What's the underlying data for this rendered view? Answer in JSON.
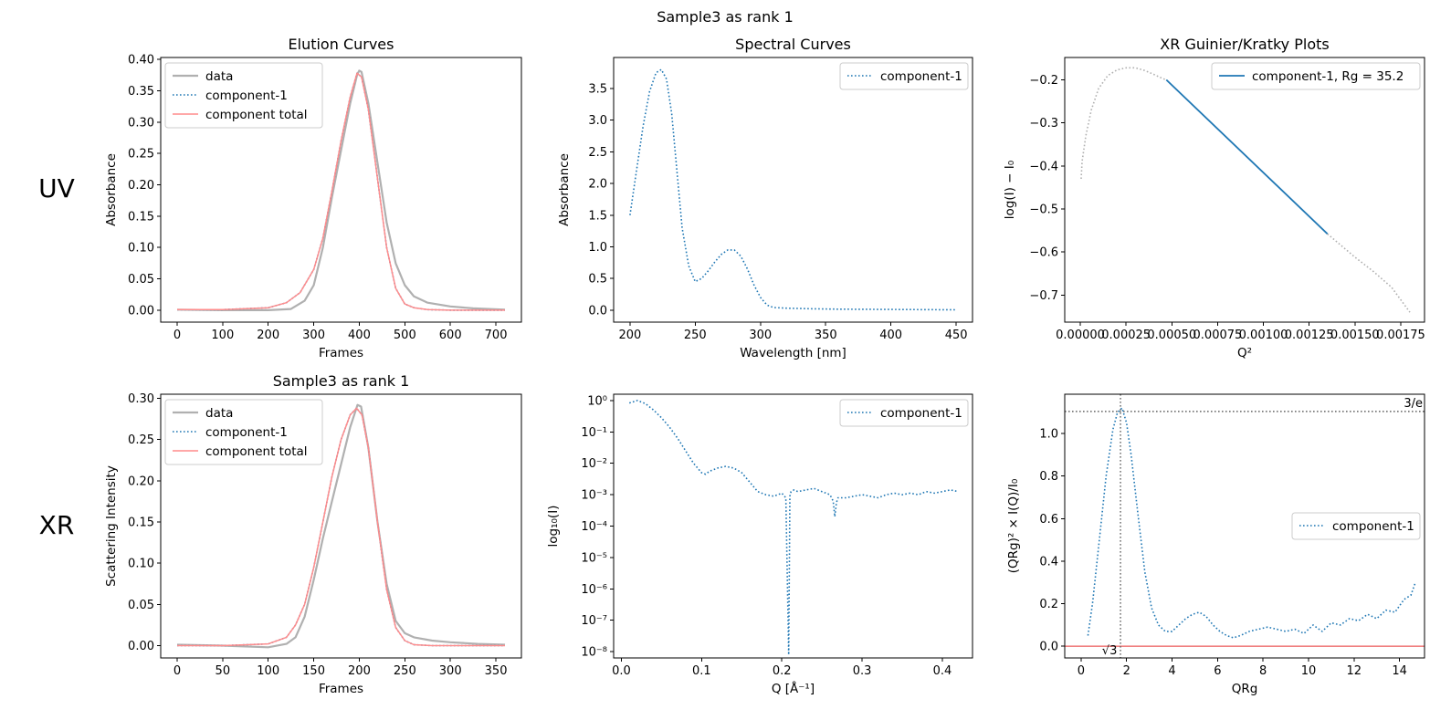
{
  "suptitle": "Sample3 as rank 1",
  "row_labels": [
    "UV",
    "XR"
  ],
  "colors": {
    "data": "#b0b0b0",
    "component": "#1f77b4",
    "total": "#ff8c8c",
    "guide": "#666666",
    "zero": "#f08080"
  },
  "chart_data": [
    {
      "id": "uv_elution",
      "type": "line",
      "title": "Elution Curves",
      "xlabel": "Frames",
      "ylabel": "Absorbance",
      "xlim": [
        -36,
        756
      ],
      "ylim": [
        -0.019,
        0.403
      ],
      "xticks": [
        0,
        100,
        200,
        300,
        400,
        500,
        600,
        700
      ],
      "yticks": [
        0.0,
        0.05,
        0.1,
        0.15,
        0.2,
        0.25,
        0.3,
        0.35,
        0.4
      ],
      "ytick_labels": [
        "0.00",
        "0.05",
        "0.10",
        "0.15",
        "0.20",
        "0.25",
        "0.30",
        "0.35",
        "0.40"
      ],
      "legend": [
        "data",
        "component-1",
        "component total"
      ],
      "series": [
        {
          "name": "data",
          "style": "data",
          "x": [
            0,
            100,
            200,
            250,
            280,
            300,
            320,
            340,
            360,
            380,
            395,
            400,
            405,
            420,
            440,
            460,
            480,
            500,
            520,
            550,
            600,
            650,
            720
          ],
          "y": [
            0.001,
            0.0,
            0.0,
            0.002,
            0.015,
            0.04,
            0.1,
            0.18,
            0.255,
            0.33,
            0.375,
            0.382,
            0.38,
            0.33,
            0.235,
            0.14,
            0.075,
            0.04,
            0.022,
            0.012,
            0.006,
            0.003,
            0.001
          ]
        },
        {
          "name": "component-1",
          "style": "component",
          "x": [
            0,
            100,
            200,
            240,
            270,
            300,
            320,
            340,
            360,
            380,
            395,
            405,
            420,
            440,
            460,
            480,
            500,
            520,
            550,
            600,
            720
          ],
          "y": [
            0.001,
            0.001,
            0.004,
            0.012,
            0.028,
            0.065,
            0.115,
            0.19,
            0.27,
            0.34,
            0.378,
            0.372,
            0.32,
            0.21,
            0.1,
            0.035,
            0.01,
            0.004,
            0.001,
            0.0,
            0.0
          ]
        },
        {
          "name": "component total",
          "style": "total",
          "x": [
            0,
            100,
            200,
            240,
            270,
            300,
            320,
            340,
            360,
            380,
            395,
            405,
            420,
            440,
            460,
            480,
            500,
            520,
            550,
            600,
            720
          ],
          "y": [
            0.001,
            0.001,
            0.004,
            0.012,
            0.028,
            0.065,
            0.115,
            0.19,
            0.27,
            0.34,
            0.378,
            0.372,
            0.32,
            0.21,
            0.1,
            0.035,
            0.01,
            0.004,
            0.001,
            0.0,
            0.0
          ]
        }
      ]
    },
    {
      "id": "uv_spectral",
      "type": "line",
      "title": "Spectral Curves",
      "xlabel": "Wavelength [nm]",
      "ylabel": "Absorbance",
      "xlim": [
        187.5,
        462.5
      ],
      "ylim": [
        -0.19,
        3.99
      ],
      "xticks": [
        200,
        250,
        300,
        350,
        400,
        450
      ],
      "yticks": [
        0.0,
        0.5,
        1.0,
        1.5,
        2.0,
        2.5,
        3.0,
        3.5
      ],
      "ytick_labels": [
        "0.0",
        "0.5",
        "1.0",
        "1.5",
        "2.0",
        "2.5",
        "3.0",
        "3.5"
      ],
      "legend": [
        "component-1"
      ],
      "series": [
        {
          "name": "component-1",
          "style": "component",
          "x": [
            200,
            205,
            210,
            215,
            220,
            224,
            228,
            232,
            236,
            240,
            245,
            250,
            255,
            260,
            265,
            270,
            275,
            280,
            285,
            290,
            295,
            300,
            305,
            310,
            320,
            340,
            360,
            400,
            450
          ],
          "y": [
            1.5,
            2.2,
            2.9,
            3.45,
            3.75,
            3.8,
            3.65,
            3.1,
            2.2,
            1.3,
            0.7,
            0.45,
            0.5,
            0.62,
            0.76,
            0.88,
            0.95,
            0.95,
            0.85,
            0.65,
            0.4,
            0.2,
            0.08,
            0.04,
            0.03,
            0.02,
            0.015,
            0.01,
            0.005
          ]
        }
      ]
    },
    {
      "id": "xr_guinier",
      "type": "line",
      "title": "XR Guinier/Kratky Plots",
      "xlabel": "Q²",
      "ylabel": "log(I) − I₀",
      "xlim": [
        -8.5e-05,
        0.00188
      ],
      "ylim": [
        -0.763,
        -0.148
      ],
      "xticks": [
        0.0,
        0.00025,
        0.0005,
        0.00075,
        0.001,
        0.00125,
        0.0015,
        0.00175
      ],
      "xtick_labels": [
        "0.00000",
        "0.00025",
        "0.00050",
        "0.00075",
        "0.00100",
        "0.00125",
        "0.00150",
        "0.00175"
      ],
      "yticks": [
        -0.7,
        -0.6,
        -0.5,
        -0.4,
        -0.3,
        -0.2
      ],
      "ytick_labels": [
        "−0.7",
        "−0.6",
        "−0.5",
        "−0.4",
        "−0.3",
        "−0.2"
      ],
      "legend": [
        "component-1, Rg = 35.2"
      ],
      "series": [
        {
          "name": "data",
          "style": "guinierdata",
          "x": [
            5e-06,
            1e-05,
            3e-05,
            6e-05,
            0.0001,
            0.00015,
            0.0002,
            0.00025,
            0.0003,
            0.00035,
            0.0004,
            0.00045,
            0.00047
          ],
          "y": [
            -0.43,
            -0.39,
            -0.33,
            -0.27,
            -0.22,
            -0.19,
            -0.177,
            -0.172,
            -0.172,
            -0.178,
            -0.187,
            -0.197,
            -0.2
          ]
        },
        {
          "name": "component-1, Rg = 35.2",
          "style": "guinierfit",
          "x": [
            0.00047,
            0.00135
          ],
          "y": [
            -0.2,
            -0.558
          ]
        },
        {
          "name": "data tail",
          "style": "guinierdata",
          "x": [
            0.00135,
            0.0015,
            0.0016,
            0.0017,
            0.0018
          ],
          "y": [
            -0.558,
            -0.612,
            -0.645,
            -0.682,
            -0.74
          ]
        }
      ]
    },
    {
      "id": "xr_elution",
      "type": "line",
      "title": "Sample3 as rank 1",
      "xlabel": "Frames",
      "ylabel": "Scattering Intensity",
      "xlim": [
        -18,
        378
      ],
      "ylim": [
        -0.015,
        0.305
      ],
      "xticks": [
        0,
        50,
        100,
        150,
        200,
        250,
        300,
        350
      ],
      "yticks": [
        0.0,
        0.05,
        0.1,
        0.15,
        0.2,
        0.25,
        0.3
      ],
      "ytick_labels": [
        "0.00",
        "0.05",
        "0.10",
        "0.15",
        "0.20",
        "0.25",
        "0.30"
      ],
      "legend": [
        "data",
        "component-1",
        "component total"
      ],
      "series": [
        {
          "name": "data",
          "style": "data",
          "x": [
            0,
            50,
            100,
            120,
            130,
            140,
            150,
            160,
            170,
            180,
            190,
            198,
            202,
            210,
            220,
            230,
            240,
            250,
            260,
            280,
            300,
            330,
            360
          ],
          "y": [
            0.001,
            0.0,
            -0.002,
            0.002,
            0.01,
            0.035,
            0.08,
            0.13,
            0.175,
            0.22,
            0.265,
            0.292,
            0.29,
            0.24,
            0.15,
            0.075,
            0.03,
            0.015,
            0.01,
            0.006,
            0.004,
            0.002,
            0.001
          ]
        },
        {
          "name": "component-1",
          "style": "component",
          "x": [
            0,
            50,
            100,
            120,
            130,
            140,
            150,
            160,
            170,
            180,
            190,
            197,
            203,
            210,
            220,
            230,
            240,
            250,
            260,
            280,
            360
          ],
          "y": [
            0.0,
            0.0,
            0.002,
            0.01,
            0.025,
            0.05,
            0.095,
            0.15,
            0.205,
            0.25,
            0.28,
            0.288,
            0.28,
            0.24,
            0.15,
            0.068,
            0.022,
            0.006,
            0.001,
            0.0,
            0.0
          ]
        },
        {
          "name": "component total",
          "style": "total",
          "x": [
            0,
            50,
            100,
            120,
            130,
            140,
            150,
            160,
            170,
            180,
            190,
            197,
            203,
            210,
            220,
            230,
            240,
            250,
            260,
            280,
            360
          ],
          "y": [
            0.0,
            0.0,
            0.002,
            0.01,
            0.025,
            0.05,
            0.095,
            0.15,
            0.205,
            0.25,
            0.28,
            0.288,
            0.28,
            0.24,
            0.15,
            0.068,
            0.022,
            0.006,
            0.001,
            0.0,
            0.0
          ]
        }
      ]
    },
    {
      "id": "xr_scattering",
      "type": "line",
      "yscale": "log",
      "title": "",
      "xlabel": "Q [Å⁻¹]",
      "ylabel": "log₁₀(I)",
      "xlim": [
        -0.0096,
        0.4376
      ],
      "ylim_log10": [
        -8.2,
        0.2
      ],
      "xticks": [
        0.0,
        0.1,
        0.2,
        0.3,
        0.4
      ],
      "xtick_labels": [
        "0.0",
        "0.1",
        "0.2",
        "0.3",
        "0.4"
      ],
      "yticks_log10": [
        0,
        -1,
        -2,
        -3,
        -4,
        -5,
        -6,
        -7,
        -8
      ],
      "ytick_labels": [
        "10⁰",
        "10⁻¹",
        "10⁻²",
        "10⁻³",
        "10⁻⁴",
        "10⁻⁵",
        "10⁻⁶",
        "10⁻⁷",
        "10⁻⁸"
      ],
      "legend": [
        "component-1"
      ],
      "series": [
        {
          "name": "component-1",
          "style": "component",
          "x": [
            0.01,
            0.02,
            0.03,
            0.04,
            0.05,
            0.06,
            0.07,
            0.08,
            0.09,
            0.1,
            0.105,
            0.11,
            0.12,
            0.13,
            0.14,
            0.15,
            0.16,
            0.17,
            0.18,
            0.19,
            0.2,
            0.205,
            0.2085,
            0.21,
            0.2115,
            0.215,
            0.22,
            0.23,
            0.24,
            0.25,
            0.26,
            0.264,
            0.266,
            0.268,
            0.27,
            0.28,
            0.29,
            0.3,
            0.31,
            0.32,
            0.33,
            0.34,
            0.35,
            0.36,
            0.37,
            0.38,
            0.39,
            0.4,
            0.41,
            0.42
          ],
          "log10_y": [
            -0.08,
            0.0,
            -0.1,
            -0.3,
            -0.55,
            -0.85,
            -1.2,
            -1.6,
            -2.0,
            -2.3,
            -2.35,
            -2.25,
            -2.15,
            -2.1,
            -2.15,
            -2.3,
            -2.6,
            -2.9,
            -3.0,
            -3.05,
            -2.95,
            -3.1,
            -8.1,
            -3.05,
            -2.9,
            -2.85,
            -2.9,
            -2.85,
            -2.8,
            -2.9,
            -3.0,
            -3.2,
            -3.7,
            -3.25,
            -3.1,
            -3.1,
            -3.05,
            -3.0,
            -3.05,
            -3.1,
            -3.0,
            -2.95,
            -3.0,
            -2.95,
            -3.0,
            -2.9,
            -2.95,
            -2.9,
            -2.85,
            -2.9
          ]
        }
      ]
    },
    {
      "id": "xr_kratky",
      "type": "line",
      "title": "",
      "xlabel": "QRg",
      "ylabel": "(QRg)² × I(Q)/I₀",
      "xlim": [
        -0.72,
        15.1
      ],
      "ylim": [
        -0.055,
        1.185
      ],
      "xticks": [
        0,
        2,
        4,
        6,
        8,
        10,
        12,
        14
      ],
      "yticks": [
        0.0,
        0.2,
        0.4,
        0.6,
        0.8,
        1.0
      ],
      "ytick_labels": [
        "0.0",
        "0.2",
        "0.4",
        "0.6",
        "0.8",
        "1.0"
      ],
      "legend": [
        "component-1"
      ],
      "annotations": {
        "hline_label": "3/e",
        "vline_label": "√3",
        "hline_y": 1.104,
        "vline_x": 1.732
      },
      "series": [
        {
          "name": "component-1",
          "style": "component",
          "x": [
            0.3,
            0.5,
            0.8,
            1.1,
            1.4,
            1.6,
            1.8,
            2.0,
            2.2,
            2.5,
            2.8,
            3.1,
            3.4,
            3.7,
            4.0,
            4.3,
            4.6,
            4.9,
            5.2,
            5.5,
            5.8,
            6.1,
            6.4,
            6.7,
            7.0,
            7.4,
            7.8,
            8.2,
            8.6,
            9.0,
            9.4,
            9.8,
            10.2,
            10.6,
            11.0,
            11.4,
            11.8,
            12.2,
            12.6,
            13.0,
            13.4,
            13.8,
            14.2,
            14.5,
            14.7
          ],
          "y": [
            0.05,
            0.2,
            0.5,
            0.8,
            1.02,
            1.1,
            1.12,
            1.05,
            0.9,
            0.62,
            0.35,
            0.18,
            0.1,
            0.07,
            0.07,
            0.1,
            0.13,
            0.15,
            0.16,
            0.14,
            0.1,
            0.07,
            0.05,
            0.04,
            0.05,
            0.07,
            0.08,
            0.09,
            0.08,
            0.07,
            0.08,
            0.06,
            0.1,
            0.07,
            0.11,
            0.1,
            0.13,
            0.12,
            0.15,
            0.13,
            0.17,
            0.16,
            0.22,
            0.24,
            0.3
          ]
        }
      ]
    }
  ]
}
